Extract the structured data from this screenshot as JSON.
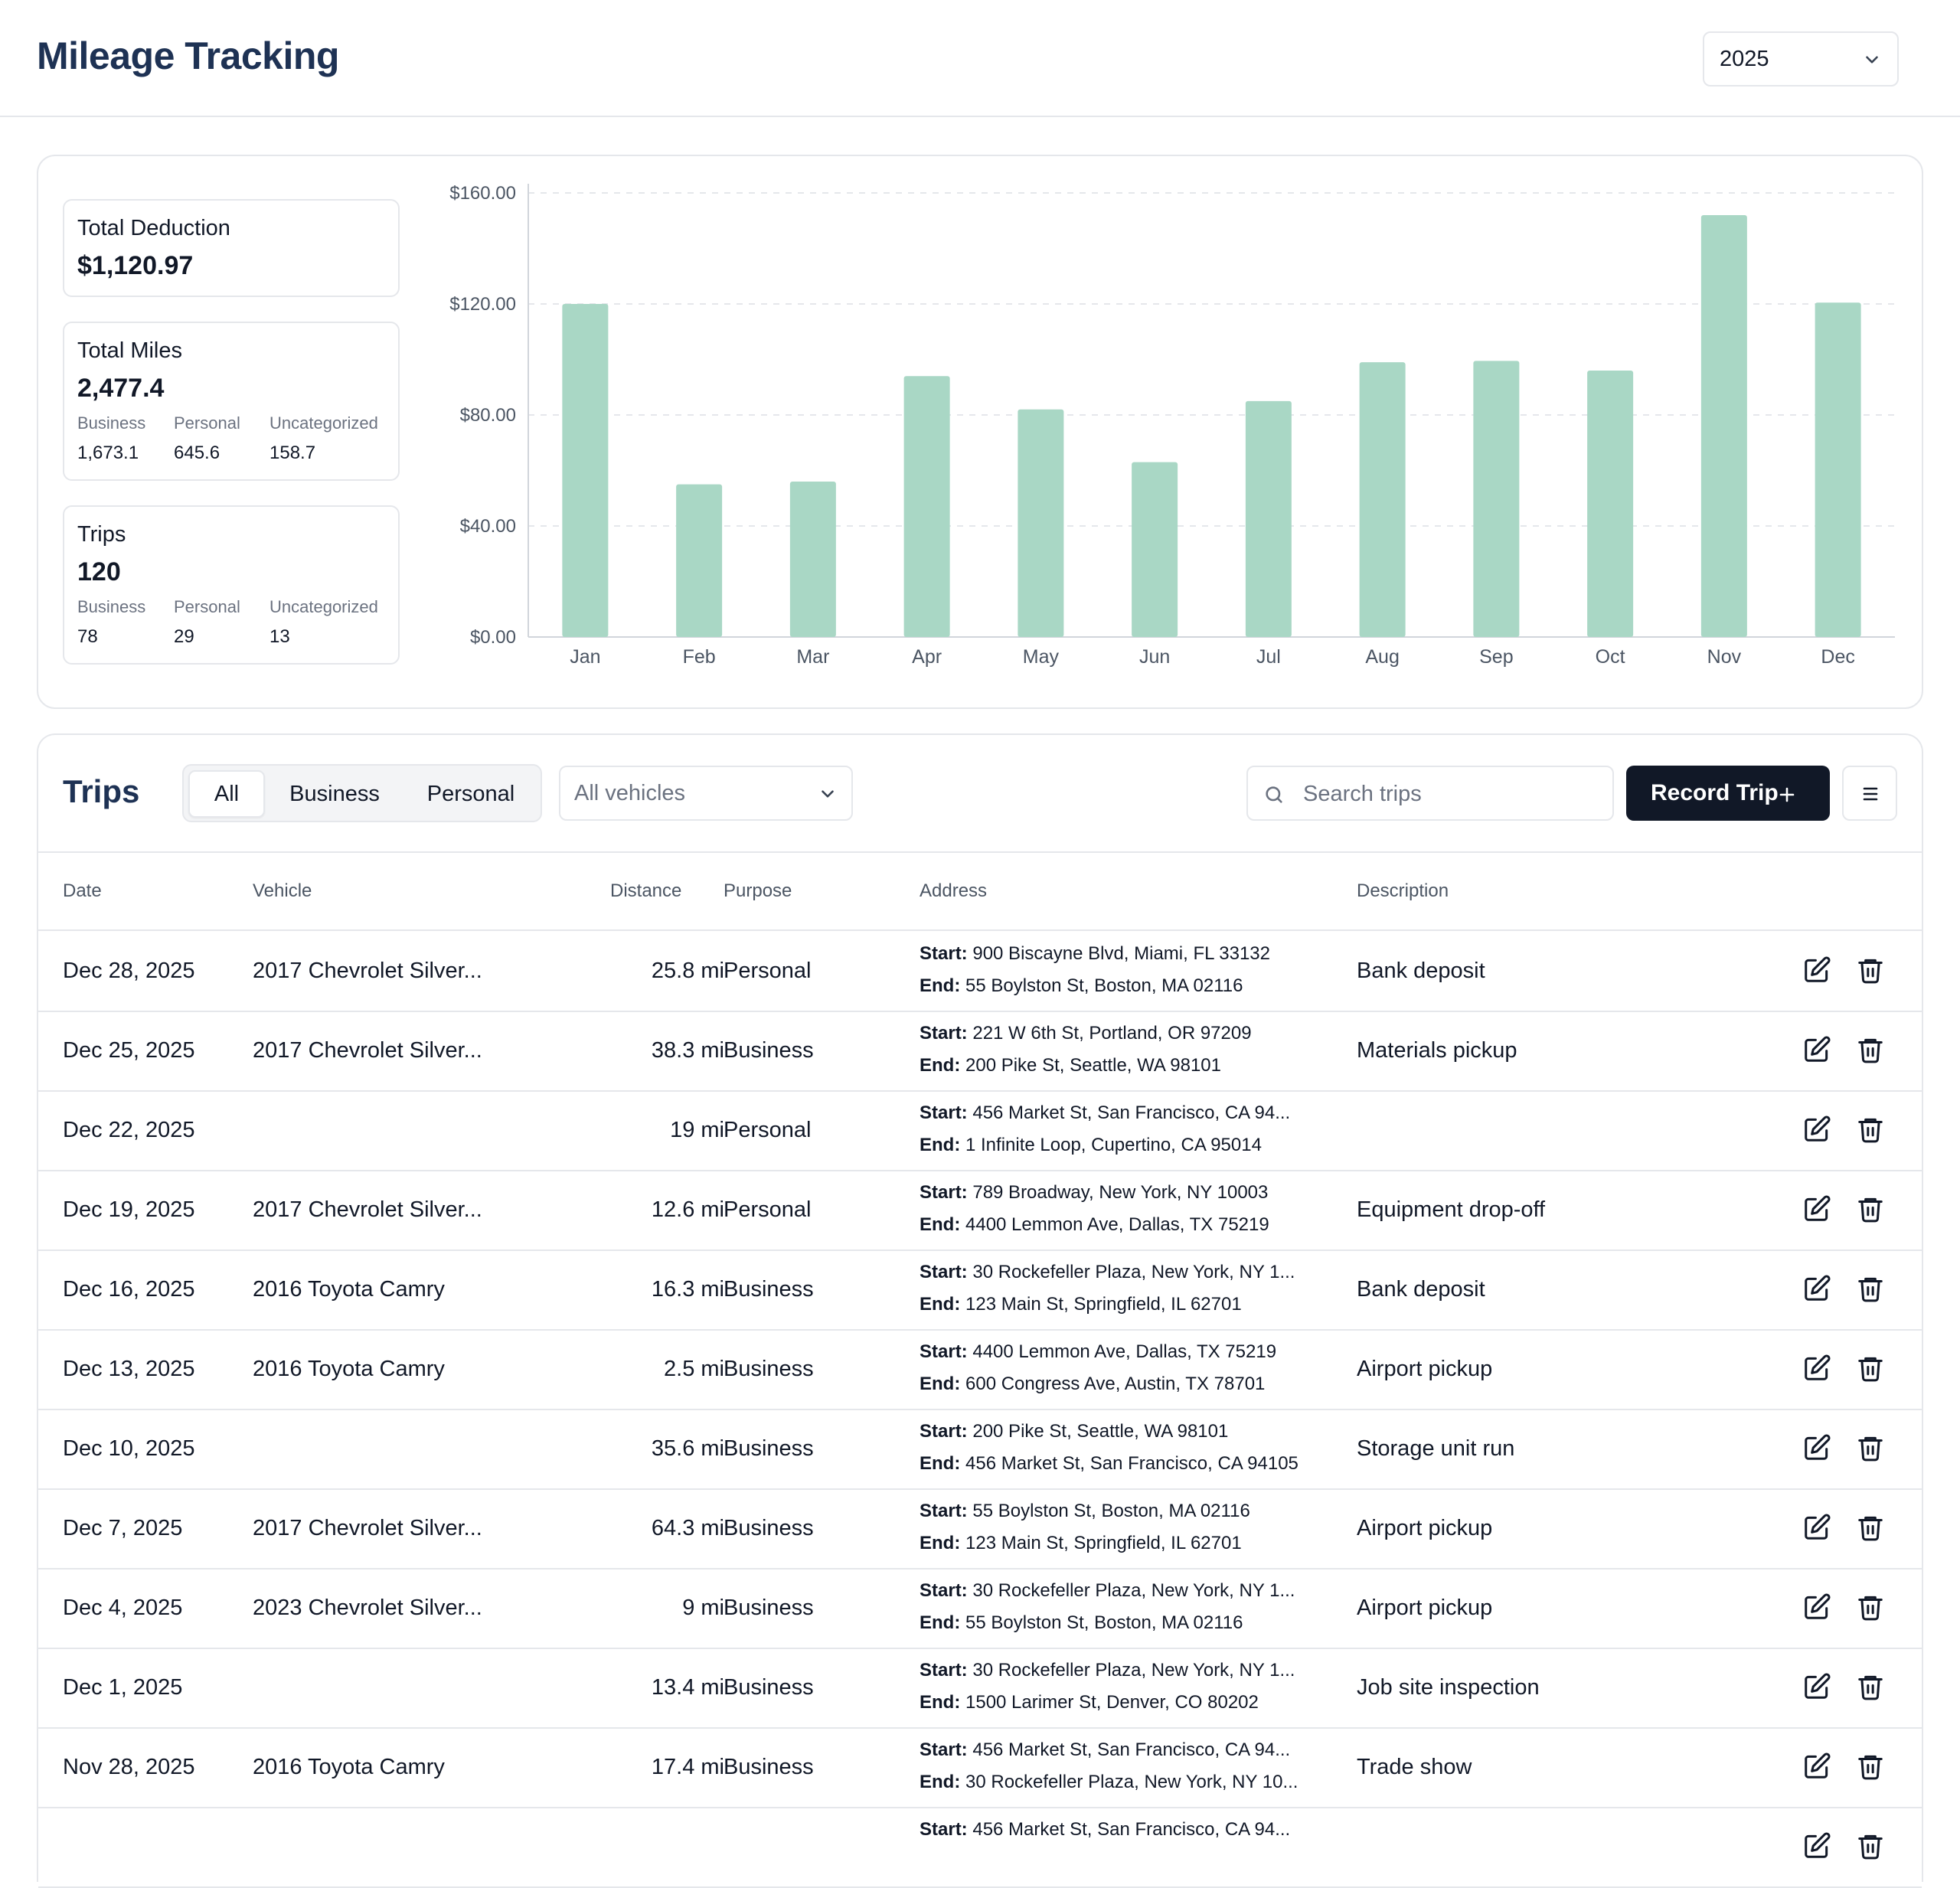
{
  "header": {
    "title": "Mileage Tracking",
    "year": "2025"
  },
  "summary": {
    "deduction": {
      "label": "Total Deduction",
      "value": "$1,120.97"
    },
    "miles": {
      "label": "Total Miles",
      "value": "2,477.4",
      "breakdown": [
        {
          "label": "Business",
          "value": "1,673.1"
        },
        {
          "label": "Personal",
          "value": "645.6"
        },
        {
          "label": "Uncategorized",
          "value": "158.7"
        }
      ]
    },
    "trips": {
      "label": "Trips",
      "value": "120",
      "breakdown": [
        {
          "label": "Business",
          "value": "78"
        },
        {
          "label": "Personal",
          "value": "29"
        },
        {
          "label": "Uncategorized",
          "value": "13"
        }
      ]
    }
  },
  "chart_data": {
    "type": "bar",
    "categories": [
      "Jan",
      "Feb",
      "Mar",
      "Apr",
      "May",
      "Jun",
      "Jul",
      "Aug",
      "Sep",
      "Oct",
      "Nov",
      "Dec"
    ],
    "values": [
      120,
      55,
      56,
      94,
      82,
      63,
      85,
      99,
      99.5,
      96,
      152,
      120.5
    ],
    "yticks": [
      "$0.00",
      "$40.00",
      "$80.00",
      "$120.00",
      "$160.00"
    ],
    "ylim": [
      0,
      160
    ],
    "bar_color": "#a9d7c5",
    "grid": true
  },
  "trips": {
    "title": "Trips",
    "filters": [
      "All",
      "Business",
      "Personal"
    ],
    "active_filter": "All",
    "vehicle_select": "All vehicles",
    "search_placeholder": "Search trips",
    "record_label": "Record Trip",
    "columns": [
      "Date",
      "Vehicle",
      "Distance",
      "Purpose",
      "Address",
      "Description"
    ],
    "rows": [
      {
        "date": "Dec 28, 2025",
        "vehicle": "2017 Chevrolet Silver...",
        "distance": "25.8 mi",
        "purpose": "Personal",
        "start": "900 Biscayne Blvd, Miami, FL 33132",
        "end": "55 Boylston St, Boston, MA 02116",
        "description": "Bank deposit"
      },
      {
        "date": "Dec 25, 2025",
        "vehicle": "2017 Chevrolet Silver...",
        "distance": "38.3 mi",
        "purpose": "Business",
        "start": "221 W 6th St, Portland, OR 97209",
        "end": "200 Pike St, Seattle, WA 98101",
        "description": "Materials pickup"
      },
      {
        "date": "Dec 22, 2025",
        "vehicle": "",
        "distance": "19 mi",
        "purpose": "Personal",
        "start": "456 Market St, San Francisco, CA 94...",
        "end": "1 Infinite Loop, Cupertino, CA 95014",
        "description": ""
      },
      {
        "date": "Dec 19, 2025",
        "vehicle": "2017 Chevrolet Silver...",
        "distance": "12.6 mi",
        "purpose": "Personal",
        "start": "789 Broadway, New York, NY 10003",
        "end": "4400 Lemmon Ave, Dallas, TX 75219",
        "description": "Equipment drop-off"
      },
      {
        "date": "Dec 16, 2025",
        "vehicle": "2016 Toyota Camry",
        "distance": "16.3 mi",
        "purpose": "Business",
        "start": "30 Rockefeller Plaza, New York, NY 1...",
        "end": "123 Main St, Springfield, IL 62701",
        "description": "Bank deposit"
      },
      {
        "date": "Dec 13, 2025",
        "vehicle": "2016 Toyota Camry",
        "distance": "2.5 mi",
        "purpose": "Business",
        "start": "4400 Lemmon Ave, Dallas, TX 75219",
        "end": "600 Congress Ave, Austin, TX 78701",
        "description": "Airport pickup"
      },
      {
        "date": "Dec 10, 2025",
        "vehicle": "",
        "distance": "35.6 mi",
        "purpose": "Business",
        "start": "200 Pike St, Seattle, WA 98101",
        "end": "456 Market St, San Francisco, CA 94105",
        "description": "Storage unit run"
      },
      {
        "date": "Dec 7, 2025",
        "vehicle": "2017 Chevrolet Silver...",
        "distance": "64.3 mi",
        "purpose": "Business",
        "start": "55 Boylston St, Boston, MA 02116",
        "end": "123 Main St, Springfield, IL 62701",
        "description": "Airport pickup"
      },
      {
        "date": "Dec 4, 2025",
        "vehicle": "2023 Chevrolet Silver...",
        "distance": "9 mi",
        "purpose": "Business",
        "start": "30 Rockefeller Plaza, New York, NY 1...",
        "end": "55 Boylston St, Boston, MA 02116",
        "description": "Airport pickup"
      },
      {
        "date": "Dec 1, 2025",
        "vehicle": "",
        "distance": "13.4 mi",
        "purpose": "Business",
        "start": "30 Rockefeller Plaza, New York, NY 1...",
        "end": "1500 Larimer St, Denver, CO 80202",
        "description": "Job site inspection"
      },
      {
        "date": "Nov 28, 2025",
        "vehicle": "2016 Toyota Camry",
        "distance": "17.4 mi",
        "purpose": "Business",
        "start": "456 Market St, San Francisco, CA 94...",
        "end": "30 Rockefeller Plaza, New York, NY 10...",
        "description": "Trade show"
      },
      {
        "date": "",
        "vehicle": "",
        "distance": "",
        "purpose": "",
        "start": "456 Market St, San Francisco, CA 94...",
        "end": "",
        "description": ""
      }
    ],
    "start_label": "Start:",
    "end_label": "End:"
  }
}
